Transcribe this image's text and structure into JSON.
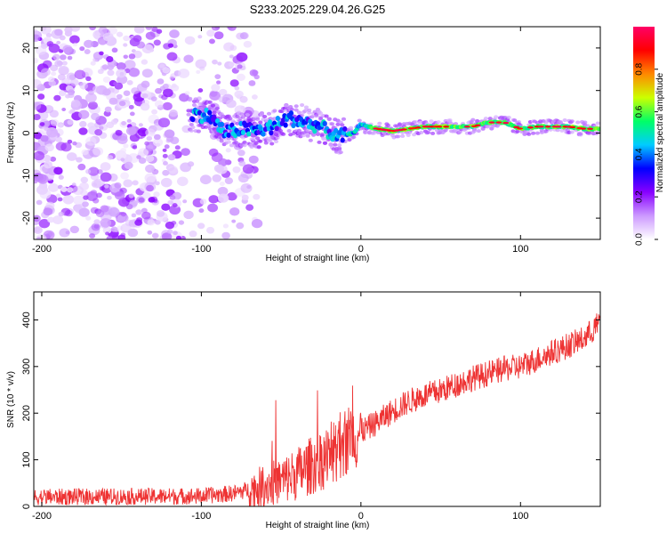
{
  "title": "S233.2025.229.04.26.G25",
  "chart_data": [
    {
      "type": "heatmap",
      "xlabel": "Height of straight line (km)",
      "ylabel": "Frequency (Hz)",
      "xlim": [
        -205,
        150
      ],
      "ylim": [
        -25,
        25
      ],
      "xticks": [
        -200,
        -100,
        0,
        100
      ],
      "yticks": [
        -20,
        -10,
        0,
        10,
        20
      ],
      "colorbar": {
        "label": "Normalized spectral amplitude",
        "range": [
          0,
          1
        ],
        "ticks": [
          "0.0",
          "0.2",
          "0.4",
          "0.6",
          "0.8"
        ],
        "colors": [
          "#ffffff",
          "#cc99ff",
          "#8800ff",
          "#0000ff",
          "#00ccff",
          "#00ff66",
          "#ccff00",
          "#ff8800",
          "#ff0000",
          "#ff0066"
        ]
      },
      "ridge": {
        "x": [
          -105,
          -95,
          -85,
          -75,
          -65,
          -55,
          -45,
          -35,
          -25,
          -15,
          -5,
          0,
          10,
          20,
          30,
          40,
          50,
          60,
          70,
          80,
          90,
          100,
          110,
          120,
          130,
          140,
          150
        ],
        "freq": [
          4.5,
          4,
          0,
          1,
          0.5,
          1.5,
          3.5,
          2.5,
          1.5,
          -1,
          0,
          2,
          1,
          0.5,
          1,
          1.5,
          1.5,
          1.5,
          1.5,
          2.5,
          2.5,
          1,
          1.5,
          1.5,
          1.5,
          1,
          1
        ]
      }
    },
    {
      "type": "line",
      "xlabel": "Height of straight line (km)",
      "ylabel": "SNR (10 * v/v)",
      "xlim": [
        -205,
        150
      ],
      "ylim": [
        0,
        460
      ],
      "xticks": [
        -200,
        -100,
        0,
        100
      ],
      "yticks": [
        0,
        100,
        200,
        300,
        400
      ],
      "series": [
        {
          "name": "SNR",
          "color": "#ee3333",
          "trend_x": [
            -205,
            -100,
            -80,
            -65,
            -50,
            -40,
            -30,
            -20,
            -10,
            0,
            10,
            20,
            30,
            40,
            50,
            60,
            70,
            80,
            90,
            100,
            110,
            120,
            130,
            140,
            150
          ],
          "trend_y": [
            20,
            22,
            28,
            40,
            55,
            70,
            90,
            110,
            140,
            160,
            180,
            205,
            225,
            238,
            248,
            262,
            275,
            285,
            295,
            300,
            315,
            330,
            345,
            360,
            395
          ]
        }
      ]
    }
  ]
}
